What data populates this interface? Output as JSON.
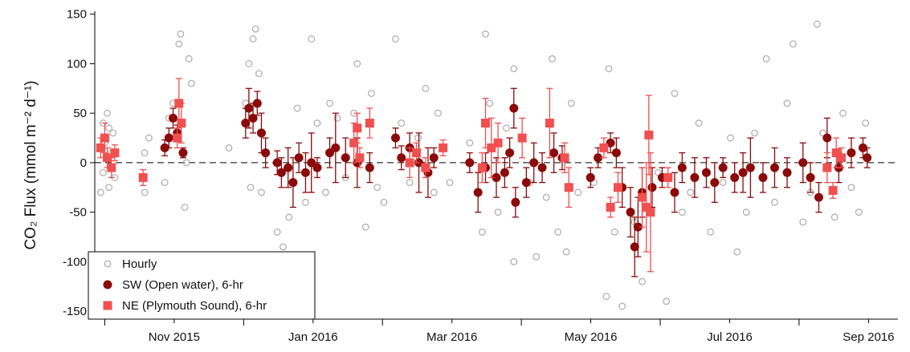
{
  "chart_data": {
    "type": "scatter",
    "ylabel": "CO₂ Flux (mmol m⁻² d⁻¹)",
    "xlim": [
      2015.738,
      2016.702
    ],
    "ylim": [
      -158,
      153
    ],
    "yticks": [
      -150,
      -100,
      -50,
      0,
      50,
      100,
      150
    ],
    "xticks": [
      {
        "value": 2015.8333,
        "label": "Nov 2015"
      },
      {
        "value": 2016.0,
        "label": "Jan 2016"
      },
      {
        "value": 2016.1667,
        "label": "Mar 2016"
      },
      {
        "value": 2016.3333,
        "label": "May 2016"
      },
      {
        "value": 2016.5,
        "label": "Jul 2016"
      },
      {
        "value": 2016.6667,
        "label": "Sep 2016"
      }
    ],
    "xminorticks": [
      2015.75,
      2015.9167,
      2016.0833,
      2016.25,
      2016.4167,
      2016.5833
    ],
    "zero_line": 0,
    "legend": "lower left",
    "series": [
      {
        "name": "Hourly",
        "color": "#aaaaaa",
        "marker": "open-circle",
        "x": [
          2015.745,
          2015.748,
          2015.75,
          2015.753,
          2015.755,
          2015.758,
          2015.76,
          2015.762,
          2015.755,
          2015.748,
          2015.798,
          2015.798,
          2015.803,
          2015.822,
          2015.827,
          2015.832,
          2015.839,
          2015.841,
          2015.846,
          2015.851,
          2015.854,
          2015.848,
          2015.899,
          2015.919,
          2015.923,
          2015.928,
          2015.931,
          2015.935,
          2015.925,
          2015.938,
          2015.957,
          2015.964,
          2015.971,
          2015.981,
          2015.991,
          2015.998,
          2016.005,
          2016.015,
          2016.02,
          2016.029,
          2016.039,
          2016.049,
          2016.053,
          2016.063,
          2016.07,
          2016.077,
          2016.085,
          2016.099,
          2016.106,
          2016.116,
          2016.126,
          2016.135,
          2016.145,
          2016.15,
          2016.164,
          2016.188,
          2016.203,
          2016.207,
          2016.212,
          2016.222,
          2016.232,
          2016.241,
          2016.241,
          2016.26,
          2016.268,
          2016.28,
          2016.287,
          2016.294,
          2016.304,
          2016.31,
          2016.318,
          2016.337,
          2016.352,
          2016.355,
          2016.362,
          2016.371,
          2016.386,
          2016.395,
          2016.414,
          2016.424,
          2016.434,
          2016.443,
          2016.453,
          2016.463,
          2016.477,
          2016.492,
          2016.501,
          2016.509,
          2016.52,
          2016.53,
          2016.544,
          2016.554,
          2016.569,
          2016.576,
          2016.588,
          2016.597,
          2016.605,
          2016.612,
          2016.626,
          2016.636,
          2016.646,
          2016.655,
          2016.663
        ],
        "values": [
          -30,
          40,
          20,
          50,
          -25,
          10,
          30,
          -15,
          35,
          -10,
          -30,
          10,
          25,
          -20,
          45,
          60,
          120,
          130,
          -45,
          105,
          80,
          0,
          15,
          60,
          100,
          125,
          135,
          90,
          -25,
          -30,
          -70,
          -85,
          -55,
          55,
          -40,
          125,
          40,
          -30,
          60,
          45,
          -15,
          50,
          100,
          -65,
          70,
          -25,
          -40,
          125,
          40,
          -20,
          25,
          75,
          -30,
          50,
          -20,
          20,
          -70,
          130,
          60,
          -50,
          35,
          -100,
          95,
          -20,
          -95,
          -35,
          105,
          -70,
          -90,
          60,
          -30,
          -20,
          -135,
          95,
          -70,
          -145,
          -60,
          -120,
          -10,
          -140,
          70,
          -50,
          -30,
          40,
          -70,
          -20,
          25,
          -90,
          -50,
          30,
          105,
          -40,
          60,
          120,
          -60,
          -30,
          140,
          30,
          -55,
          50,
          -25,
          -50,
          40
        ]
      },
      {
        "name": "SW (Open water), 6-hr",
        "color": "#8b0a0a",
        "marker": "circle",
        "x": [
          2015.822,
          2015.827,
          2015.832,
          2015.837,
          2015.844,
          2015.919,
          2015.923,
          2015.928,
          2015.933,
          2015.938,
          2015.943,
          2015.957,
          2015.962,
          2015.97,
          2015.976,
          2015.983,
          2015.991,
          2015.998,
          2016.005,
          2016.02,
          2016.027,
          2016.039,
          2016.053,
          2016.068,
          2016.099,
          2016.106,
          2016.116,
          2016.127,
          2016.138,
          2016.145,
          2016.188,
          2016.198,
          2016.207,
          2016.22,
          2016.23,
          2016.236,
          2016.241,
          2016.243,
          2016.256,
          2016.265,
          2016.275,
          2016.289,
          2016.299,
          2016.333,
          2016.342,
          2016.357,
          2016.364,
          2016.371,
          2016.381,
          2016.386,
          2016.39,
          2016.395,
          2016.407,
          2016.419,
          2016.434,
          2016.443,
          2016.458,
          2016.472,
          2016.482,
          2016.492,
          2016.506,
          2016.516,
          2016.525,
          2016.54,
          2016.554,
          2016.569,
          2016.588,
          2016.597,
          2016.607,
          2016.617,
          2016.631,
          2016.646,
          2016.66,
          2016.665
        ],
        "values": [
          15,
          25,
          45,
          30,
          10,
          40,
          55,
          45,
          60,
          30,
          10,
          0,
          -10,
          -5,
          -20,
          5,
          -10,
          0,
          -5,
          10,
          15,
          5,
          0,
          -5,
          25,
          5,
          15,
          0,
          -10,
          5,
          0,
          -30,
          -5,
          -15,
          -10,
          10,
          55,
          -40,
          -20,
          0,
          -5,
          10,
          5,
          -15,
          5,
          20,
          10,
          -25,
          -50,
          -85,
          -65,
          -30,
          -25,
          -15,
          -30,
          -5,
          -15,
          -10,
          -20,
          -5,
          -15,
          -10,
          -5,
          -15,
          -5,
          -10,
          0,
          -15,
          -35,
          25,
          -5,
          10,
          15,
          5
        ],
        "errors": [
          8,
          10,
          10,
          8,
          5,
          15,
          20,
          15,
          12,
          20,
          15,
          12,
          15,
          20,
          25,
          15,
          20,
          30,
          10,
          15,
          35,
          20,
          25,
          15,
          10,
          12,
          15,
          30,
          25,
          10,
          10,
          20,
          15,
          20,
          15,
          15,
          20,
          15,
          15,
          20,
          15,
          20,
          12,
          10,
          10,
          10,
          15,
          20,
          25,
          30,
          30,
          25,
          20,
          10,
          20,
          15,
          20,
          15,
          20,
          10,
          15,
          20,
          30,
          15,
          20,
          15,
          20,
          15,
          15,
          20,
          15,
          15,
          10,
          10
        ]
      },
      {
        "name": "NE (Plymouth Sound), 6-hr",
        "color": "#f0504f",
        "marker": "square",
        "x": [
          2015.745,
          2015.75,
          2015.753,
          2015.758,
          2015.762,
          2015.796,
          2015.839,
          2015.842,
          2015.837,
          2016.049,
          2016.053,
          2016.056,
          2016.068,
          2016.116,
          2016.124,
          2016.135,
          2016.156,
          2016.203,
          2016.207,
          2016.214,
          2016.222,
          2016.251,
          2016.284,
          2016.302,
          2016.307,
          2016.349,
          2016.357,
          2016.366,
          2016.395,
          2016.4,
          2016.405,
          2016.403,
          2016.426,
          2016.617,
          2016.624,
          2016.628,
          2016.634
        ],
        "values": [
          15,
          25,
          5,
          -5,
          10,
          -15,
          60,
          40,
          25,
          20,
          35,
          5,
          40,
          0,
          10,
          -5,
          15,
          -5,
          40,
          15,
          20,
          25,
          40,
          5,
          -25,
          15,
          -45,
          -25,
          -35,
          -45,
          -50,
          28,
          -15,
          -5,
          -28,
          10,
          5
        ],
        "errors": [
          10,
          15,
          10,
          10,
          8,
          8,
          25,
          20,
          10,
          20,
          15,
          10,
          15,
          15,
          10,
          10,
          8,
          15,
          25,
          30,
          20,
          20,
          35,
          15,
          20,
          10,
          10,
          15,
          30,
          45,
          60,
          40,
          10,
          15,
          8,
          15,
          10
        ]
      }
    ]
  }
}
